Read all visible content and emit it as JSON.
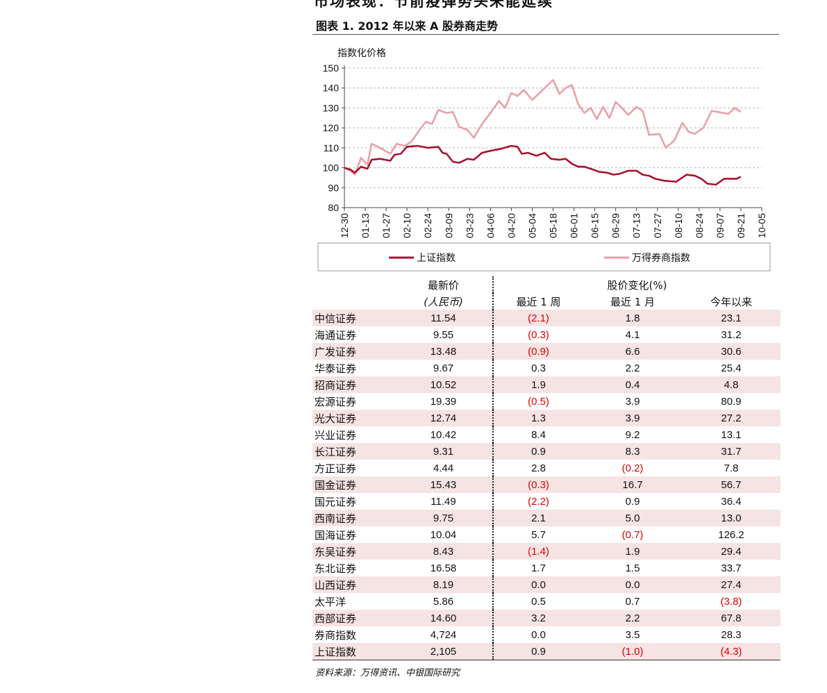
{
  "page": {
    "heading": "市场表现：节前疫弹势头未能延续",
    "figure_title": "图表 1. 2012 年以来 A 股券商走势",
    "source": "资料来源：万得资讯、中银国际研究"
  },
  "chart_data": {
    "type": "line",
    "ylabel": "指数化价格",
    "ylim": [
      80,
      150
    ],
    "yticks": [
      "150",
      "140",
      "130",
      "120",
      "110",
      "100",
      "90",
      "80"
    ],
    "xticks": [
      "12-30",
      "01-13",
      "01-27",
      "02-10",
      "02-24",
      "03-09",
      "03-23",
      "04-06",
      "04-20",
      "05-04",
      "05-18",
      "06-01",
      "06-15",
      "06-29",
      "07-13",
      "07-27",
      "08-10",
      "08-24",
      "09-07",
      "09-21",
      "10-05"
    ],
    "grid": true,
    "legend": "bottom",
    "colors": {
      "shanghai": "#a8122e",
      "broker": "#e9a1a6"
    },
    "series": [
      {
        "name": "上证指数",
        "key": "shanghai",
        "values": [
          100,
          99,
          97.5,
          100.5,
          99.5,
          104,
          104.5,
          103.5,
          106.5,
          107,
          110.5,
          111,
          110,
          110.5,
          107.5,
          107,
          103,
          102.5,
          104.5,
          104,
          107.5,
          108.5,
          109.5,
          111,
          110.5,
          107,
          107.5,
          106,
          107.5,
          104.5,
          104,
          104.5,
          102,
          100.5,
          100.5,
          99.5,
          98,
          97.5,
          96.5,
          97,
          98.5,
          98.5,
          96.5,
          96,
          94.5,
          93.5,
          93,
          96.5,
          96,
          94.5,
          92,
          91.5,
          94.5,
          94.5,
          95.5
        ],
        "x": [
          0,
          0.3,
          0.5,
          0.8,
          1.1,
          1.3,
          1.7,
          2.2,
          2.4,
          2.7,
          3.0,
          3.5,
          4.0,
          4.5,
          4.7,
          4.9,
          5.2,
          5.5,
          5.9,
          6.2,
          6.6,
          7.0,
          7.5,
          8.0,
          8.3,
          8.5,
          8.8,
          9.2,
          9.6,
          9.9,
          10.3,
          10.6,
          10.9,
          11.2,
          11.5,
          11.8,
          12.2,
          12.6,
          12.9,
          13.2,
          13.6,
          14.0,
          14.3,
          14.6,
          14.9,
          15.3,
          15.9,
          16.4,
          16.8,
          17.1,
          17.4,
          17.8,
          18.2,
          18.8,
          19.0
        ]
      },
      {
        "name": "万得券商指数",
        "key": "broker",
        "values": [
          100,
          98.5,
          96.5,
          105,
          101.5,
          112,
          110,
          107,
          112,
          111,
          113,
          119,
          123,
          122,
          129,
          127.5,
          128,
          120.5,
          119,
          115,
          122,
          127.5,
          133.5,
          130,
          137.5,
          136,
          139,
          134,
          137,
          140,
          144,
          137,
          140,
          141.5,
          132,
          127.5,
          130,
          124.5,
          130.5,
          125,
          133,
          130,
          126.5,
          130.5,
          128.5,
          116.5,
          117,
          110,
          113.5,
          122.5,
          118,
          117,
          120,
          128.5,
          127,
          130,
          128
        ],
        "x": [
          0,
          0.3,
          0.5,
          0.8,
          1.1,
          1.3,
          1.7,
          2.2,
          2.5,
          2.9,
          3.2,
          3.6,
          3.9,
          4.2,
          4.5,
          4.9,
          5.2,
          5.5,
          5.9,
          6.2,
          6.6,
          7.0,
          7.4,
          7.7,
          8.0,
          8.3,
          8.6,
          9.0,
          9.3,
          9.6,
          10.0,
          10.3,
          10.6,
          10.9,
          11.2,
          11.5,
          11.8,
          12.1,
          12.4,
          12.7,
          13.0,
          13.3,
          13.6,
          14.0,
          14.3,
          14.6,
          15.1,
          15.4,
          15.8,
          16.2,
          16.5,
          16.8,
          17.2,
          17.6,
          18.4,
          18.7,
          19.0
        ]
      }
    ],
    "xmax": 20
  },
  "table": {
    "header": {
      "latest": "最新价",
      "latest_unit": "(人民币)",
      "change": "股价变化(%)",
      "w1": "最近 1 周",
      "m1": "最近 1 月",
      "ytd": "今年以来"
    },
    "rows": [
      {
        "name": "中信证券",
        "price": "11.54",
        "w1": "(2.1)",
        "m1": "1.8",
        "ytd": "23.1"
      },
      {
        "name": "海通证券",
        "price": "9.55",
        "w1": "(0.3)",
        "m1": "4.1",
        "ytd": "31.2"
      },
      {
        "name": "广发证券",
        "price": "13.48",
        "w1": "(0.9)",
        "m1": "6.6",
        "ytd": "30.6"
      },
      {
        "name": "华泰证券",
        "price": "9.67",
        "w1": "0.3",
        "m1": "2.2",
        "ytd": "25.4"
      },
      {
        "name": "招商证券",
        "price": "10.52",
        "w1": "1.9",
        "m1": "0.4",
        "ytd": "4.8"
      },
      {
        "name": "宏源证券",
        "price": "19.39",
        "w1": "(0.5)",
        "m1": "3.9",
        "ytd": "80.9"
      },
      {
        "name": "光大证券",
        "price": "12.74",
        "w1": "1.3",
        "m1": "3.9",
        "ytd": "27.2"
      },
      {
        "name": "兴业证券",
        "price": "10.42",
        "w1": "8.4",
        "m1": "9.2",
        "ytd": "13.1"
      },
      {
        "name": "长江证券",
        "price": "9.31",
        "w1": "0.9",
        "m1": "8.3",
        "ytd": "31.7"
      },
      {
        "name": "方正证券",
        "price": "4.44",
        "w1": "2.8",
        "m1": "(0.2)",
        "ytd": "7.8"
      },
      {
        "name": "国金证券",
        "price": "15.43",
        "w1": "(0.3)",
        "m1": "16.7",
        "ytd": "56.7"
      },
      {
        "name": "国元证券",
        "price": "11.49",
        "w1": "(2.2)",
        "m1": "0.9",
        "ytd": "36.4"
      },
      {
        "name": "西南证券",
        "price": "9.75",
        "w1": "2.1",
        "m1": "5.0",
        "ytd": "13.0"
      },
      {
        "name": "国海证券",
        "price": "10.04",
        "w1": "5.7",
        "m1": "(0.7)",
        "ytd": "126.2"
      },
      {
        "name": "东吴证券",
        "price": "8.43",
        "w1": "(1.4)",
        "m1": "1.9",
        "ytd": "29.4"
      },
      {
        "name": "东北证券",
        "price": "16.58",
        "w1": "1.7",
        "m1": "1.5",
        "ytd": "33.7"
      },
      {
        "name": "山西证券",
        "price": "8.19",
        "w1": "0.0",
        "m1": "0.0",
        "ytd": "27.4"
      },
      {
        "name": "太平洋",
        "price": "5.86",
        "w1": "0.5",
        "m1": "0.7",
        "ytd": "(3.8)"
      },
      {
        "name": "西部证券",
        "price": "14.60",
        "w1": "3.2",
        "m1": "2.2",
        "ytd": "67.8"
      },
      {
        "name": "券商指数",
        "price": "4,724",
        "w1": "0.0",
        "m1": "3.5",
        "ytd": "28.3"
      },
      {
        "name": "上证指数",
        "price": "2,105",
        "w1": "0.9",
        "m1": "(1.0)",
        "ytd": "(4.3)"
      }
    ]
  }
}
